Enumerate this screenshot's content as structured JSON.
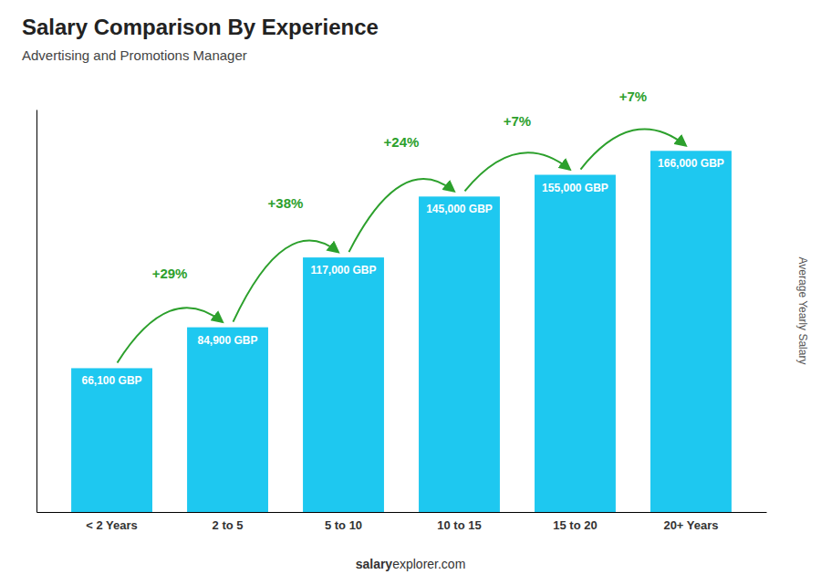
{
  "chart_data": {
    "type": "bar",
    "title": "Salary Comparison By Experience",
    "subtitle": "Advertising and Promotions Manager",
    "ylabel": "Average Yearly Salary",
    "categories": [
      "< 2 Years",
      "2 to 5",
      "5 to 10",
      "10 to 15",
      "15 to 20",
      "20+ Years"
    ],
    "values": [
      66100,
      84900,
      117000,
      145000,
      155000,
      166000
    ],
    "value_labels": [
      "66,100 GBP",
      "84,900 GBP",
      "117,000 GBP",
      "145,000 GBP",
      "155,000 GBP",
      "166,000 GBP"
    ],
    "data_labels": true,
    "annotations": [
      "+29%",
      "+38%",
      "+24%",
      "+7%",
      "+7%"
    ],
    "footer": [
      "salary",
      "explorer.com"
    ],
    "color": "#1EC8F0",
    "ylim": [
      0,
      185000
    ],
    "tick_labels": "x",
    "grid": false
  }
}
